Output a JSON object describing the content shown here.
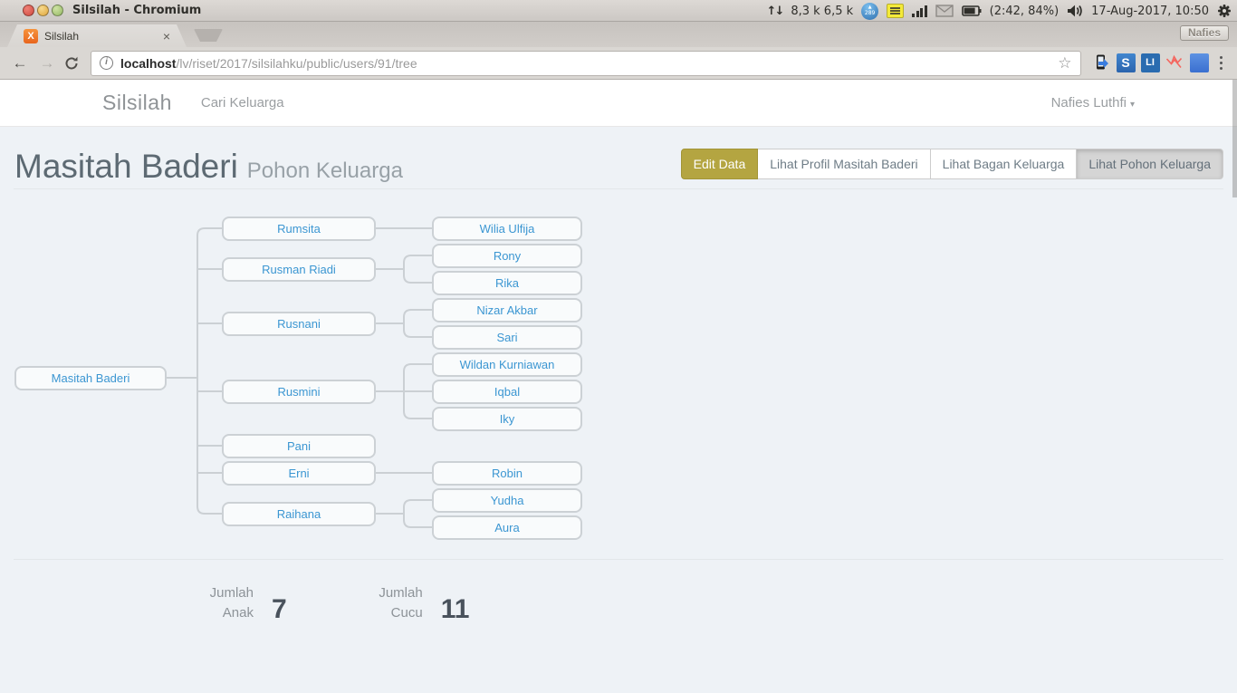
{
  "panel": {
    "window_title": "Silsilah - Chromium",
    "net_traffic": "8,3 k 6,5 k",
    "badge_count": "289",
    "battery_status": "(2:42, 84%)",
    "clock": "17-Aug-2017, 10:50",
    "indicator_label": "Nafies"
  },
  "icons": {
    "up_down": "↑↓",
    "badge_up": "▲",
    "back": "←",
    "forward": "→",
    "star": "☆",
    "close": "×",
    "caret": "▾",
    "info": "i",
    "favicon_letter": "X"
  },
  "tabbar": {
    "tab_title": "Silsilah"
  },
  "toolbar": {
    "url_host": "localhost",
    "url_path": "/lv/riset/2017/silsilahku/public/users/91/tree",
    "ext_s_label": "S",
    "ext_li_label": "LI"
  },
  "navbar": {
    "brand": "Silsilah",
    "menu_item": "Cari Keluarga",
    "user": "Nafies Luthfi"
  },
  "header": {
    "title": "Masitah Baderi",
    "subtitle": "Pohon Keluarga"
  },
  "actions": [
    {
      "label": "Edit Data",
      "state": "olive"
    },
    {
      "label": "Lihat Profil Masitah Baderi",
      "state": "default"
    },
    {
      "label": "Lihat Bagan Keluarga",
      "state": "default"
    },
    {
      "label": "Lihat Pohon Keluarga",
      "state": "pressed"
    }
  ],
  "tree": {
    "root": {
      "name": "Masitah Baderi",
      "children": [
        {
          "name": "Rumsita",
          "children": [
            {
              "name": "Wilia Ulfija"
            }
          ]
        },
        {
          "name": "Rusman Riadi",
          "children": [
            {
              "name": "Rony"
            },
            {
              "name": "Rika"
            }
          ]
        },
        {
          "name": "Rusnani",
          "children": [
            {
              "name": "Nizar Akbar"
            },
            {
              "name": "Sari"
            }
          ]
        },
        {
          "name": "Rusmini",
          "children": [
            {
              "name": "Wildan Kurniawan"
            },
            {
              "name": "Iqbal"
            },
            {
              "name": "Iky"
            }
          ]
        },
        {
          "name": "Pani",
          "children": []
        },
        {
          "name": "Erni",
          "children": [
            {
              "name": "Robin"
            }
          ]
        },
        {
          "name": "Raihana",
          "children": [
            {
              "name": "Yudha"
            },
            {
              "name": "Aura"
            }
          ]
        }
      ]
    }
  },
  "stats": {
    "anak_label": "Jumlah Anak",
    "anak_value": "7",
    "cucu_label": "Jumlah Cucu",
    "cucu_value": "11"
  },
  "colors": {
    "accent_olive": "#b4a541",
    "node_text": "#3b96d2",
    "connector": "#cbd0d4",
    "page_bg": "#eef2f6"
  }
}
